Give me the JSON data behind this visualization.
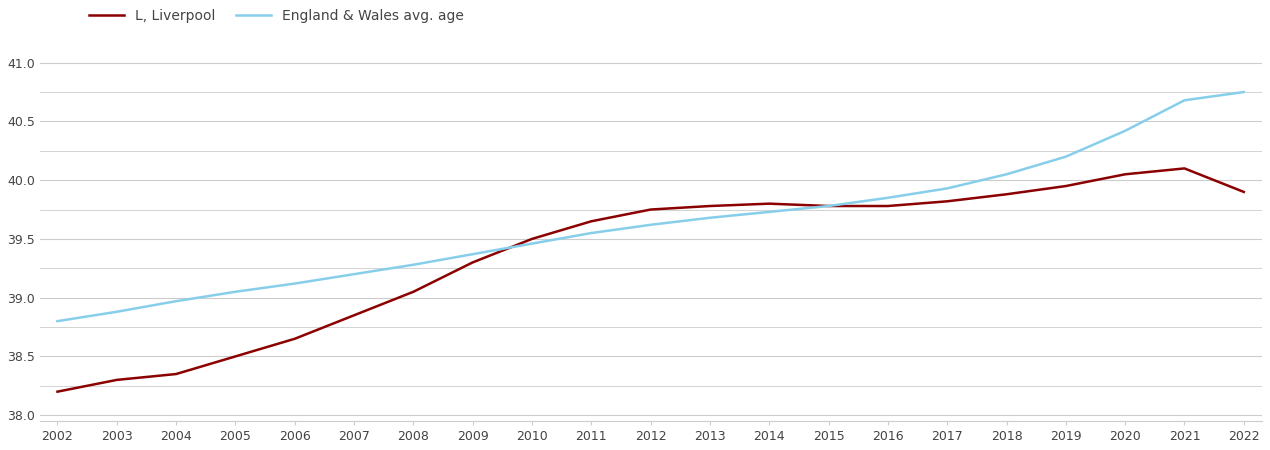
{
  "years": [
    2002,
    2003,
    2004,
    2005,
    2006,
    2007,
    2008,
    2009,
    2010,
    2011,
    2012,
    2013,
    2014,
    2015,
    2016,
    2017,
    2018,
    2019,
    2020,
    2021,
    2022
  ],
  "liverpool": [
    38.2,
    38.3,
    38.35,
    38.5,
    38.65,
    38.85,
    39.05,
    39.3,
    39.5,
    39.65,
    39.75,
    39.78,
    39.8,
    39.78,
    39.78,
    39.82,
    39.88,
    39.95,
    40.05,
    40.1,
    39.9
  ],
  "england_wales": [
    38.8,
    38.88,
    38.97,
    39.05,
    39.12,
    39.2,
    39.28,
    39.37,
    39.46,
    39.55,
    39.62,
    39.68,
    39.73,
    39.78,
    39.85,
    39.93,
    40.05,
    40.2,
    40.42,
    40.68,
    40.75
  ],
  "liverpool_color": "#8B0000",
  "england_wales_color": "#87CEEB",
  "liverpool_label": "L, Liverpool",
  "england_wales_label": "England & Wales avg. age",
  "ylim": [
    37.95,
    41.15
  ],
  "yticks": [
    38.0,
    38.5,
    39.0,
    39.5,
    40.0,
    40.5,
    41.0
  ],
  "background_color": "#ffffff",
  "grid_color": "#cccccc",
  "line_width": 1.8
}
